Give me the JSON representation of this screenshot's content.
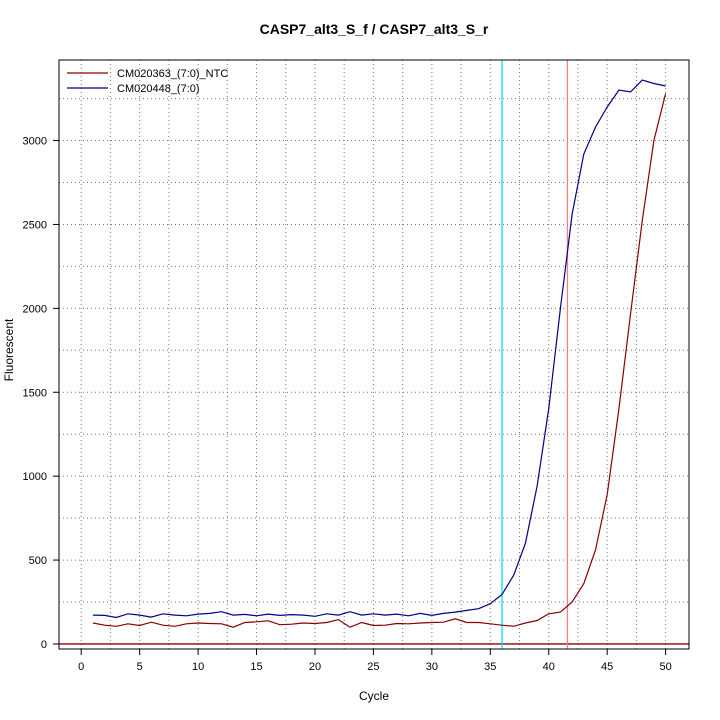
{
  "chart_data": {
    "type": "line",
    "title": "CASP7_alt3_S_f / CASP7_alt3_S_r",
    "xlabel": "Cycle",
    "ylabel": "Fluorescent",
    "xlim": [
      -1.9,
      52
    ],
    "ylim": [
      -30,
      3480
    ],
    "x_ticks": [
      0,
      5,
      10,
      15,
      20,
      25,
      30,
      35,
      40,
      45,
      50
    ],
    "y_ticks": [
      0,
      500,
      1000,
      1500,
      2000,
      2500,
      3000
    ],
    "legend_position": "top-left",
    "grid": true,
    "threshold_line": {
      "y": 0,
      "color": "#8b0000"
    },
    "vertical_lines": [
      {
        "x": 36,
        "color": "#00e5ee"
      },
      {
        "x": 41.6,
        "color": "#f08080"
      }
    ],
    "series": [
      {
        "name": "CM020363_(7:0)_NTC",
        "color": "#8b0000",
        "x": [
          1,
          2,
          3,
          4,
          5,
          6,
          7,
          8,
          9,
          10,
          11,
          12,
          13,
          14,
          15,
          16,
          17,
          18,
          19,
          20,
          21,
          22,
          23,
          24,
          25,
          26,
          27,
          28,
          29,
          30,
          31,
          32,
          33,
          34,
          35,
          36,
          37,
          38,
          39,
          40,
          41,
          42,
          43,
          44,
          45,
          46,
          47,
          48,
          49,
          50
        ],
        "y": [
          125,
          112,
          105,
          120,
          110,
          130,
          112,
          105,
          120,
          125,
          122,
          120,
          100,
          128,
          132,
          138,
          115,
          118,
          125,
          122,
          128,
          145,
          100,
          128,
          110,
          112,
          122,
          120,
          125,
          128,
          130,
          150,
          128,
          128,
          120,
          112,
          105,
          125,
          140,
          180,
          190,
          250,
          360,
          560,
          890,
          1400,
          1970,
          2520,
          3000,
          3280
        ]
      },
      {
        "name": "CM020448_(7:0)",
        "color": "#00008b",
        "x": [
          1,
          2,
          3,
          4,
          5,
          6,
          7,
          8,
          9,
          10,
          11,
          12,
          13,
          14,
          15,
          16,
          17,
          18,
          19,
          20,
          21,
          22,
          23,
          24,
          25,
          26,
          27,
          28,
          29,
          30,
          31,
          32,
          33,
          34,
          35,
          36,
          37,
          38,
          39,
          40,
          41,
          42,
          43,
          44,
          45,
          46,
          47,
          48,
          49,
          50
        ],
        "y": [
          172,
          170,
          158,
          180,
          172,
          160,
          180,
          172,
          168,
          178,
          182,
          192,
          172,
          176,
          168,
          178,
          170,
          175,
          172,
          165,
          180,
          172,
          192,
          172,
          180,
          172,
          178,
          168,
          182,
          170,
          182,
          190,
          200,
          210,
          240,
          295,
          410,
          600,
          940,
          1400,
          2000,
          2560,
          2920,
          3080,
          3200,
          3300,
          3290,
          3360,
          3340,
          3325
        ]
      }
    ]
  }
}
